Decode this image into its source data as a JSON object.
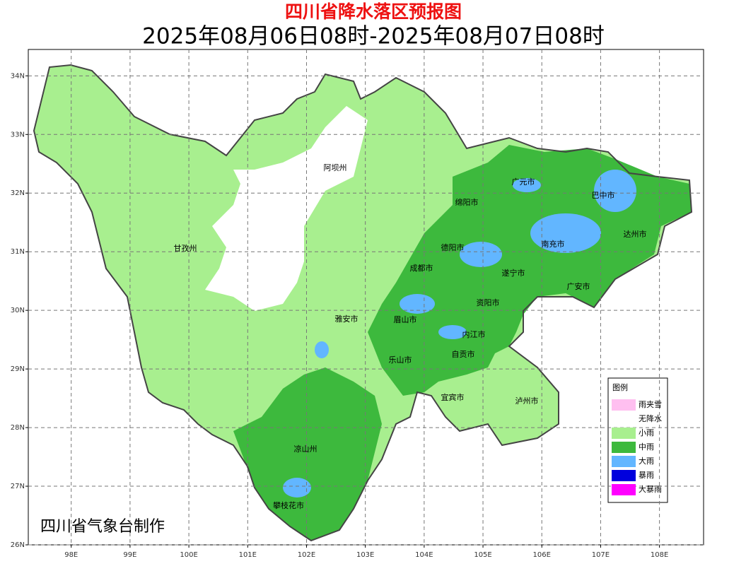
{
  "header": {
    "title": "四川省降水落区预报图",
    "subtitle": "2025年08月06日08时-2025年08月07日08时"
  },
  "map": {
    "xlim": [
      97.27,
      108.75
    ],
    "ylim": [
      26,
      34.45
    ],
    "xticks": [
      {
        "value": 98,
        "label": "98E"
      },
      {
        "value": 99,
        "label": "99E"
      },
      {
        "value": 100,
        "label": "100E"
      },
      {
        "value": 101,
        "label": "101E"
      },
      {
        "value": 102,
        "label": "102E"
      },
      {
        "value": 103,
        "label": "103E"
      },
      {
        "value": 104,
        "label": "104E"
      },
      {
        "value": 105,
        "label": "105E"
      },
      {
        "value": 106,
        "label": "106E"
      },
      {
        "value": 107,
        "label": "107E"
      },
      {
        "value": 108,
        "label": "108E"
      }
    ],
    "yticks": [
      {
        "value": 26,
        "label": "26N"
      },
      {
        "value": 27,
        "label": "27N"
      },
      {
        "value": 28,
        "label": "28N"
      },
      {
        "value": 29,
        "label": "29N"
      },
      {
        "value": 30,
        "label": "30N"
      },
      {
        "value": 31,
        "label": "31N"
      },
      {
        "value": 32,
        "label": "32N"
      },
      {
        "value": 33,
        "label": "33N"
      },
      {
        "value": 34,
        "label": "34N"
      }
    ],
    "grid": true,
    "cities": [
      "阿坝州",
      "甘孜州",
      "广元市",
      "巴中市",
      "绵阳市",
      "达州市",
      "德阳市",
      "南充市",
      "成都市",
      "遂宁市",
      "广安市",
      "资阳市",
      "雅安市",
      "眉山市",
      "内江市",
      "自贡市",
      "乐山市",
      "宜宾市",
      "泸州市",
      "凉山州",
      "攀枝花市"
    ]
  },
  "legend": {
    "title": "图例",
    "items": [
      {
        "label": "雨夹雪",
        "color": "#ffbff0"
      },
      {
        "label": "无降水",
        "color": "#ffffff"
      },
      {
        "label": "小雨",
        "color": "#a8ef8f"
      },
      {
        "label": "中雨",
        "color": "#3db93d"
      },
      {
        "label": "大雨",
        "color": "#62b6ff"
      },
      {
        "label": "暴雨",
        "color": "#0000dd"
      },
      {
        "label": "大暴雨",
        "color": "#ff00ff"
      }
    ]
  },
  "credit": "四川省气象台制作"
}
